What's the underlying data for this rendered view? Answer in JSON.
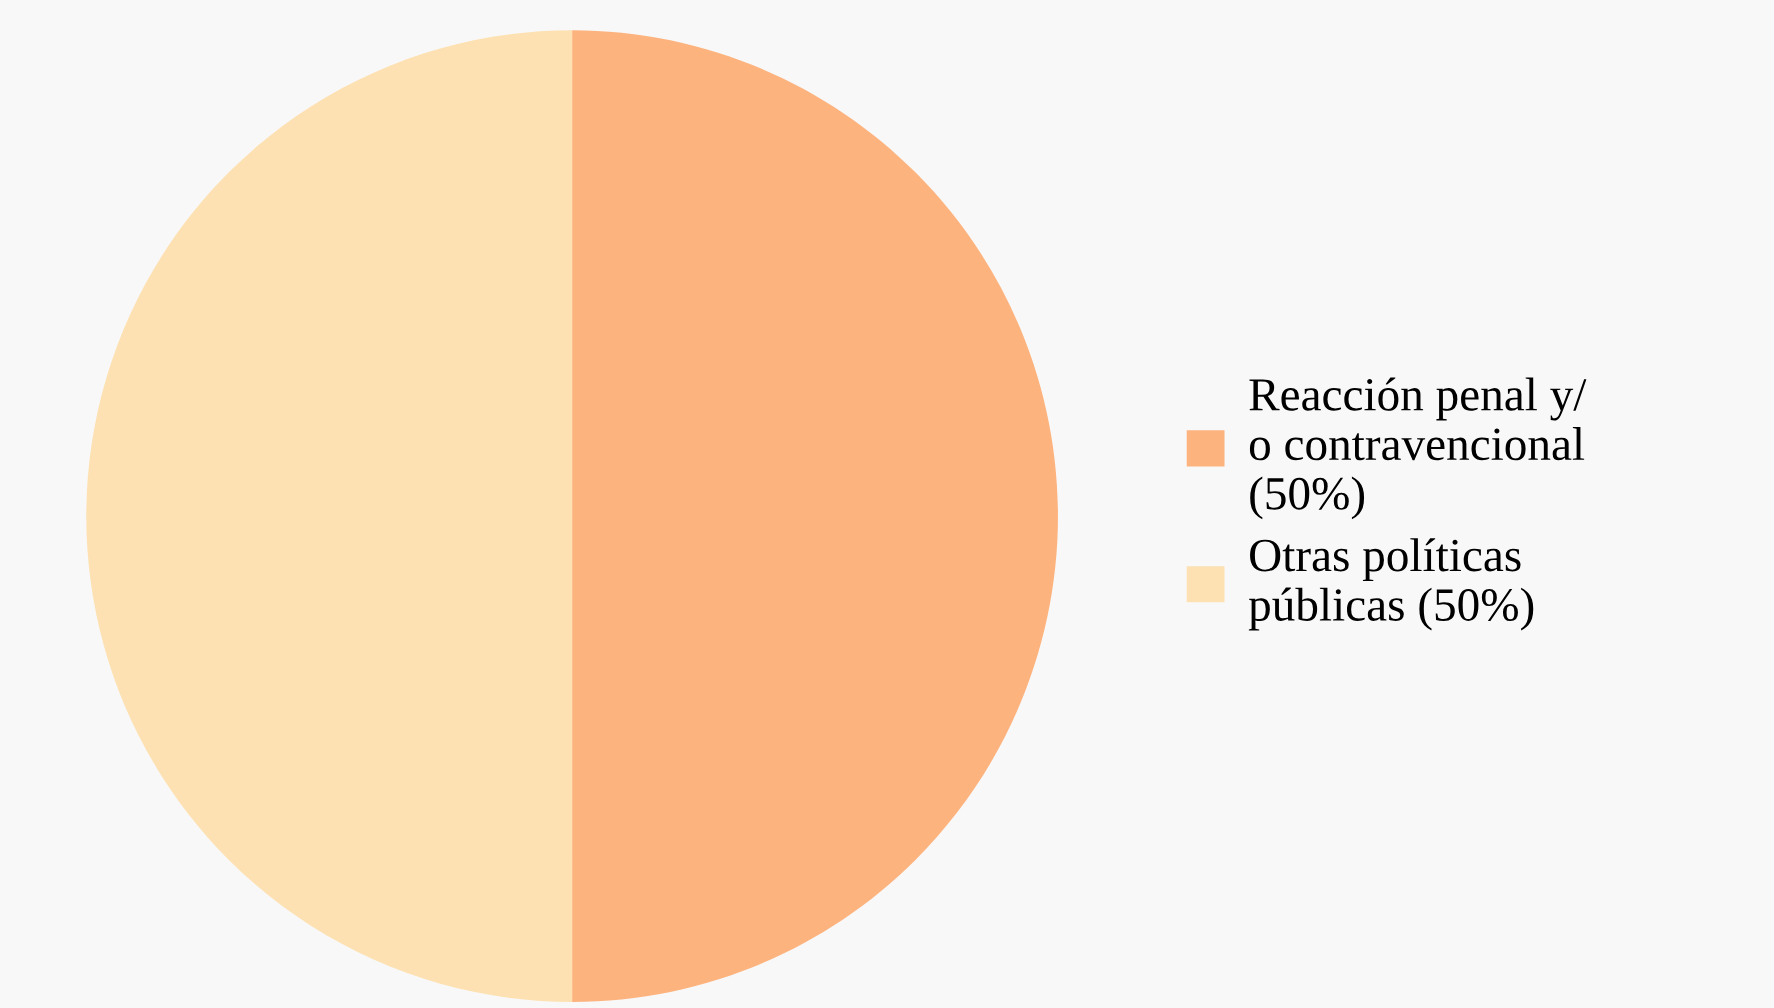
{
  "chart_data": {
    "type": "pie",
    "categories": [
      "Reacción penal y/\no contravencional\n(50%)",
      "Otras políticas\npúblicas (50%)"
    ],
    "values": [
      50,
      50
    ],
    "colors": [
      "#fdb37e",
      "#fde1b2"
    ],
    "legend": "right"
  }
}
